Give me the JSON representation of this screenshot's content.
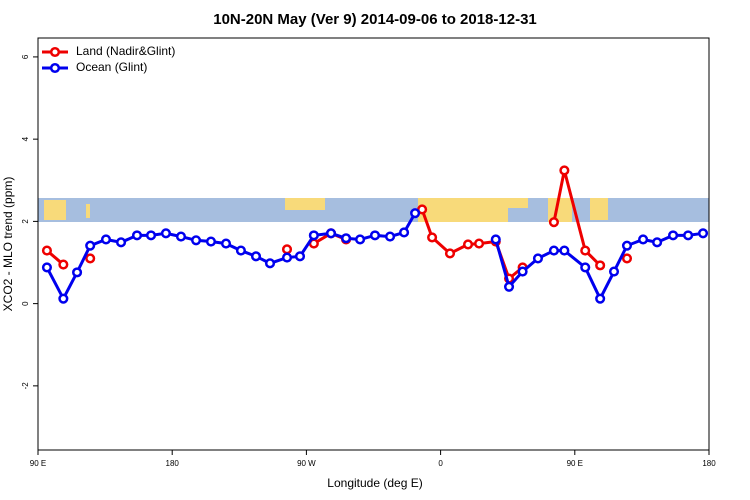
{
  "chart_data": {
    "type": "line",
    "title": "10N-20N May (Ver 9)   2014-09-06 to 2018-12-31",
    "x_label": "Longitude (deg E)",
    "y_label": "XCO2 - MLO trend (ppm)",
    "x": [
      96,
      107,
      116.2,
      125,
      135.6,
      145.7,
      156.4,
      165.8,
      175.8,
      185.9,
      196,
      206,
      216.1,
      226.1,
      236.2,
      245.6,
      257,
      265.7,
      275,
      286.5,
      296.6,
      306,
      316,
      326.1,
      335.5,
      342.9,
      347.6,
      354.3,
      366.3,
      378.4,
      385.8,
      397,
      405.9,
      415,
      425.3,
      436,
      443,
      457,
      467,
      476.3,
      485,
      495.8,
      505.2,
      515.9,
      526,
      536
    ],
    "series": [
      {
        "name": "Land (Nadir&Glint)",
        "color": "#ee0000",
        "values": [
          1.29,
          0.95,
          null,
          1.1,
          null,
          null,
          null,
          null,
          null,
          null,
          null,
          null,
          null,
          null,
          null,
          null,
          1.32,
          null,
          1.46,
          1.71,
          1.56,
          null,
          null,
          null,
          null,
          null,
          2.29,
          1.61,
          1.22,
          1.44,
          1.46,
          1.51,
          0.61,
          0.88,
          null,
          1.98,
          3.24,
          1.29,
          0.93,
          null,
          1.1,
          null,
          null,
          null,
          null,
          null
        ]
      },
      {
        "name": "Ocean (Glint)",
        "color": "#0000ee",
        "values": [
          0.88,
          0.12,
          0.76,
          1.41,
          1.56,
          1.49,
          1.66,
          1.66,
          1.71,
          1.63,
          1.54,
          1.51,
          1.46,
          1.29,
          1.15,
          0.98,
          1.12,
          1.15,
          1.66,
          1.71,
          1.59,
          1.56,
          1.66,
          1.63,
          1.73,
          2.2,
          null,
          null,
          null,
          null,
          null,
          1.56,
          0.41,
          0.78,
          1.1,
          1.29,
          1.29,
          0.88,
          0.12,
          0.78,
          1.41,
          1.56,
          1.49,
          1.66,
          1.66,
          1.71
        ]
      }
    ],
    "xlim": [
      90,
      540
    ],
    "xticks": [
      {
        "value": 90,
        "label": "90 E"
      },
      180,
      {
        "value": 270,
        "label": "90 W"
      },
      {
        "value": 360,
        "label": "0"
      },
      {
        "value": 450,
        "label": "90 E"
      },
      180
    ],
    "ylim": [
      -3.56,
      6.46
    ],
    "yticks": [
      -2,
      0,
      2,
      4,
      6
    ],
    "legend": "top-left"
  }
}
